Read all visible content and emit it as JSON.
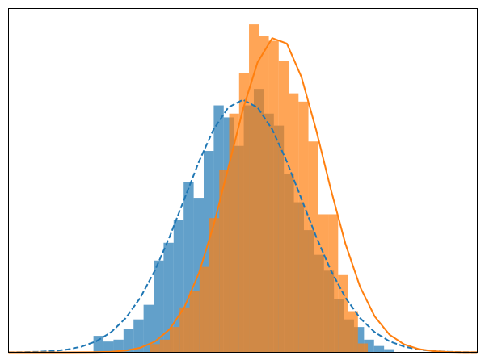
{
  "chart_data": {
    "type": "histogram",
    "xlim": [
      -4,
      4
    ],
    "ylim": [
      0,
      0.543
    ],
    "series": [
      {
        "color": "#1f77b4",
        "opacity": 0.7,
        "bins": [
          -2.55,
          -2.379,
          -2.208,
          -2.037,
          -1.866,
          -1.695,
          -1.524,
          -1.353,
          -1.182,
          -1.011,
          -0.84,
          -0.669,
          -0.498,
          -0.327,
          -0.156,
          0.015,
          0.186,
          0.357,
          0.528,
          0.699,
          0.87,
          1.041,
          1.212,
          1.383,
          1.554,
          1.725,
          1.896,
          2.067,
          2.238,
          2.409,
          2.58
        ],
        "values": [
          0.026,
          0.017,
          0.02,
          0.037,
          0.052,
          0.075,
          0.145,
          0.173,
          0.209,
          0.269,
          0.244,
          0.318,
          0.39,
          0.371,
          0.326,
          0.39,
          0.416,
          0.377,
          0.358,
          0.282,
          0.237,
          0.193,
          0.154,
          0.129,
          0.084,
          0.052,
          0.04,
          0.02,
          0.01,
          0.005
        ]
      },
      {
        "color": "#ff7f0e",
        "opacity": 0.7,
        "bins": [
          -1.586,
          -1.417,
          -1.248,
          -1.079,
          -0.91,
          -0.741,
          -0.572,
          -0.403,
          -0.234,
          -0.065,
          0.104,
          0.273,
          0.442,
          0.611,
          0.78,
          0.949,
          1.118,
          1.287,
          1.456,
          1.625,
          1.794,
          1.963,
          2.132
        ],
        "values": [
          0.013,
          0.02,
          0.04,
          0.071,
          0.097,
          0.135,
          0.212,
          0.288,
          0.377,
          0.441,
          0.518,
          0.499,
          0.492,
          0.46,
          0.409,
          0.396,
          0.333,
          0.218,
          0.218,
          0.122,
          0.065,
          0.014
        ]
      }
    ],
    "lines": [
      {
        "color": "#1f77b4",
        "dashed": true,
        "x": [
          -4,
          -3.75,
          -3.5,
          -3.25,
          -3,
          -2.75,
          -2.5,
          -2.25,
          -2,
          -1.75,
          -1.5,
          -1.25,
          -1,
          -0.75,
          -0.5,
          -0.25,
          0,
          0.25,
          0.5,
          0.75,
          1,
          1.25,
          1.5,
          1.75,
          2,
          2.25,
          2.5,
          2.75,
          3,
          3.25,
          3.5,
          3.75,
          4
        ],
        "values": [
          0.0001,
          0.0004,
          0.0009,
          0.002,
          0.0044,
          0.0091,
          0.0175,
          0.0317,
          0.054,
          0.0863,
          0.1295,
          0.1826,
          0.242,
          0.3011,
          0.3521,
          0.3867,
          0.3989,
          0.3867,
          0.3521,
          0.3011,
          0.242,
          0.1826,
          0.1295,
          0.0863,
          0.054,
          0.0317,
          0.0175,
          0.0091,
          0.0044,
          0.002,
          0.0009,
          0.0004,
          0.0001
        ]
      },
      {
        "color": "#ff7f0e",
        "dashed": false,
        "x": [
          -4,
          -3.75,
          -3.5,
          -3.25,
          -3,
          -2.75,
          -2.5,
          -2.25,
          -2,
          -1.75,
          -1.5,
          -1.25,
          -1,
          -0.75,
          -0.5,
          -0.25,
          0,
          0.25,
          0.5,
          0.75,
          1,
          1.25,
          1.5,
          1.75,
          2,
          2.25,
          2.5,
          2.75,
          3,
          3.25,
          3.5,
          3.75,
          4
        ],
        "values": [
          0,
          0,
          0,
          0,
          2e-05,
          0.0001,
          0.0003,
          0.001,
          0.0027,
          0.0072,
          0.017,
          0.0364,
          0.0709,
          0.1252,
          0.2005,
          0.2912,
          0.3834,
          0.458,
          0.4962,
          0.4876,
          0.4345,
          0.3511,
          0.2575,
          0.1712,
          0.1033,
          0.0565,
          0.028,
          0.0126,
          0.0051,
          0.0019,
          0.0006,
          0.0002,
          0.0001
        ]
      }
    ]
  }
}
